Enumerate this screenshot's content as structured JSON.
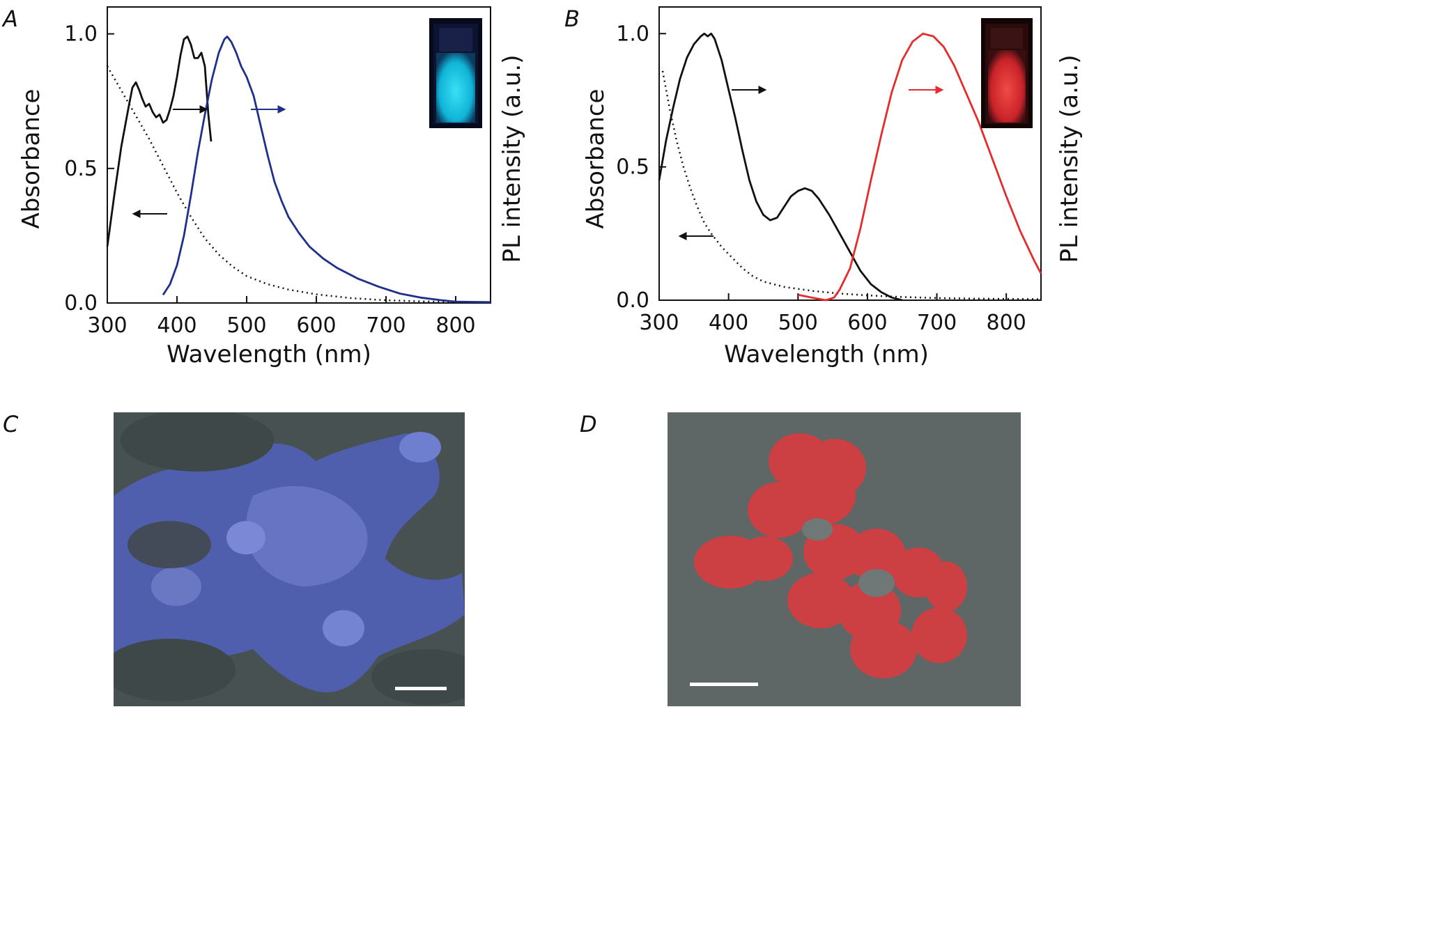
{
  "panels": {
    "a": "A",
    "b": "B",
    "c": "C",
    "d": "D"
  },
  "chart_data": [
    {
      "type": "line",
      "xlabel": "Wavelength (nm)",
      "ylabel_left": "Absorbance",
      "ylabel_right": "PL intensity (a.u.)",
      "xlim": [
        300,
        850
      ],
      "ylim": [
        0,
        1.1
      ],
      "xticks": [
        "300",
        "400",
        "500",
        "600",
        "700",
        "800"
      ],
      "yticks": [
        "0.0",
        "0.5",
        "1.0"
      ],
      "colors": {
        "dotted": "#111111",
        "black": "#111111",
        "pl": "#1f2f8c",
        "inset_glow": "#14c8e6"
      },
      "series": [
        {
          "style": "dotted",
          "axis": "left",
          "points": [
            [
              300,
              0.88
            ],
            [
              320,
              0.79
            ],
            [
              340,
              0.7
            ],
            [
              360,
              0.61
            ],
            [
              380,
              0.51
            ],
            [
              400,
              0.41
            ],
            [
              420,
              0.32
            ],
            [
              440,
              0.24
            ],
            [
              460,
              0.18
            ],
            [
              480,
              0.135
            ],
            [
              500,
              0.1
            ],
            [
              530,
              0.07
            ],
            [
              560,
              0.05
            ],
            [
              600,
              0.032
            ],
            [
              650,
              0.018
            ],
            [
              700,
              0.01
            ],
            [
              750,
              0.006
            ],
            [
              800,
              0.004
            ],
            [
              850,
              0.003
            ]
          ]
        },
        {
          "style": "solid-black",
          "axis": "right",
          "points": [
            [
              300,
              0.21
            ],
            [
              310,
              0.4
            ],
            [
              320,
              0.58
            ],
            [
              330,
              0.72
            ],
            [
              336,
              0.8
            ],
            [
              341,
              0.82
            ],
            [
              346,
              0.79
            ],
            [
              350,
              0.76
            ],
            [
              355,
              0.73
            ],
            [
              360,
              0.74
            ],
            [
              365,
              0.71
            ],
            [
              370,
              0.69
            ],
            [
              375,
              0.7
            ],
            [
              380,
              0.67
            ],
            [
              385,
              0.68
            ],
            [
              390,
              0.72
            ],
            [
              395,
              0.77
            ],
            [
              400,
              0.84
            ],
            [
              405,
              0.92
            ],
            [
              410,
              0.98
            ],
            [
              415,
              0.99
            ],
            [
              420,
              0.96
            ],
            [
              425,
              0.91
            ],
            [
              430,
              0.91
            ],
            [
              435,
              0.93
            ],
            [
              440,
              0.88
            ],
            [
              445,
              0.7
            ],
            [
              449,
              0.6
            ]
          ]
        },
        {
          "style": "solid-blue",
          "axis": "right",
          "points": [
            [
              380,
              0.03
            ],
            [
              390,
              0.07
            ],
            [
              400,
              0.14
            ],
            [
              410,
              0.25
            ],
            [
              420,
              0.4
            ],
            [
              430,
              0.56
            ],
            [
              440,
              0.7
            ],
            [
              450,
              0.83
            ],
            [
              460,
              0.93
            ],
            [
              468,
              0.98
            ],
            [
              472,
              0.99
            ],
            [
              478,
              0.97
            ],
            [
              485,
              0.93
            ],
            [
              492,
              0.88
            ],
            [
              500,
              0.84
            ],
            [
              510,
              0.77
            ],
            [
              520,
              0.66
            ],
            [
              530,
              0.55
            ],
            [
              540,
              0.45
            ],
            [
              550,
              0.38
            ],
            [
              560,
              0.32
            ],
            [
              575,
              0.26
            ],
            [
              590,
              0.21
            ],
            [
              610,
              0.165
            ],
            [
              630,
              0.13
            ],
            [
              660,
              0.09
            ],
            [
              690,
              0.06
            ],
            [
              720,
              0.035
            ],
            [
              750,
              0.02
            ],
            [
              780,
              0.01
            ],
            [
              800,
              0.005
            ],
            [
              825,
              0.004
            ],
            [
              850,
              0.003
            ]
          ]
        }
      ]
    },
    {
      "type": "line",
      "xlabel": "Wavelength (nm)",
      "ylabel_left": "Absorbance",
      "ylabel_right": "PL intensity (a.u.)",
      "xlim": [
        300,
        850
      ],
      "ylim": [
        0,
        1.1
      ],
      "xticks": [
        "300",
        "400",
        "500",
        "600",
        "700",
        "800"
      ],
      "yticks": [
        "0.0",
        "0.5",
        "1.0"
      ],
      "colors": {
        "dotted": "#111111",
        "black": "#111111",
        "pl": "#e52b2b",
        "inset_glow": "#d92a2a"
      },
      "series": [
        {
          "style": "dotted",
          "axis": "left",
          "points": [
            [
              305,
              0.86
            ],
            [
              315,
              0.72
            ],
            [
              325,
              0.6
            ],
            [
              335,
              0.5
            ],
            [
              345,
              0.42
            ],
            [
              355,
              0.35
            ],
            [
              365,
              0.29
            ],
            [
              375,
              0.25
            ],
            [
              390,
              0.2
            ],
            [
              405,
              0.16
            ],
            [
              420,
              0.12
            ],
            [
              435,
              0.09
            ],
            [
              450,
              0.07
            ],
            [
              480,
              0.05
            ],
            [
              520,
              0.035
            ],
            [
              560,
              0.025
            ],
            [
              600,
              0.018
            ],
            [
              650,
              0.012
            ],
            [
              700,
              0.008
            ],
            [
              750,
              0.006
            ],
            [
              800,
              0.005
            ],
            [
              850,
              0.004
            ]
          ]
        },
        {
          "style": "solid-black",
          "axis": "right",
          "points": [
            [
              300,
              0.45
            ],
            [
              310,
              0.6
            ],
            [
              320,
              0.72
            ],
            [
              330,
              0.83
            ],
            [
              340,
              0.91
            ],
            [
              350,
              0.96
            ],
            [
              360,
              0.99
            ],
            [
              365,
              1.0
            ],
            [
              370,
              0.99
            ],
            [
              375,
              1.0
            ],
            [
              380,
              0.98
            ],
            [
              390,
              0.9
            ],
            [
              400,
              0.79
            ],
            [
              410,
              0.68
            ],
            [
              420,
              0.56
            ],
            [
              430,
              0.45
            ],
            [
              440,
              0.37
            ],
            [
              450,
              0.32
            ],
            [
              460,
              0.3
            ],
            [
              470,
              0.31
            ],
            [
              480,
              0.35
            ],
            [
              490,
              0.39
            ],
            [
              500,
              0.41
            ],
            [
              510,
              0.42
            ],
            [
              520,
              0.41
            ],
            [
              530,
              0.38
            ],
            [
              545,
              0.32
            ],
            [
              560,
              0.25
            ],
            [
              575,
              0.18
            ],
            [
              590,
              0.11
            ],
            [
              605,
              0.06
            ],
            [
              620,
              0.03
            ],
            [
              635,
              0.01
            ],
            [
              650,
              0.0
            ]
          ]
        },
        {
          "style": "solid-red",
          "axis": "right",
          "points": [
            [
              500,
              0.02
            ],
            [
              520,
              0.01
            ],
            [
              540,
              0.0
            ],
            [
              552,
              0.01
            ],
            [
              560,
              0.04
            ],
            [
              575,
              0.12
            ],
            [
              590,
              0.27
            ],
            [
              605,
              0.45
            ],
            [
              620,
              0.62
            ],
            [
              635,
              0.78
            ],
            [
              650,
              0.9
            ],
            [
              665,
              0.97
            ],
            [
              680,
              1.0
            ],
            [
              695,
              0.99
            ],
            [
              710,
              0.95
            ],
            [
              725,
              0.88
            ],
            [
              740,
              0.79
            ],
            [
              760,
              0.67
            ],
            [
              780,
              0.53
            ],
            [
              800,
              0.39
            ],
            [
              820,
              0.26
            ],
            [
              840,
              0.15
            ],
            [
              850,
              0.1
            ]
          ]
        }
      ]
    }
  ]
}
